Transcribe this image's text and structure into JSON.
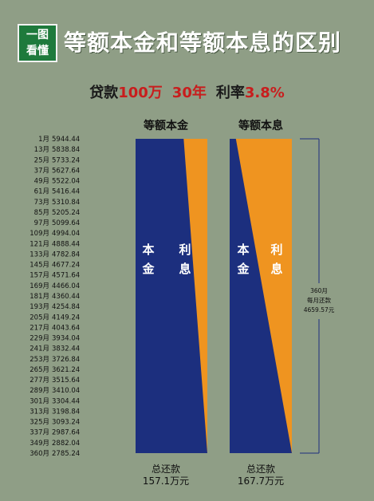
{
  "logo": {
    "line1": "一图",
    "line2": "看懂"
  },
  "header": {
    "title": "等额本金和等额本息的区别"
  },
  "subtitle": {
    "loan_label": "贷款",
    "loan_value": "100万",
    "term_value": "30年",
    "rate_label": "利率",
    "rate_value": "3.8%"
  },
  "colors": {
    "principal": "#1c2f7e",
    "interest": "#ef9420",
    "background": "#8f9e86"
  },
  "chart_data": {
    "type": "bar",
    "left_chart": {
      "title": "等额本金",
      "principal_label": "本金",
      "interest_label": "利息",
      "total_label": "总还款",
      "total_value": "157.1万元"
    },
    "right_chart": {
      "title": "等额本息",
      "principal_label": "本金",
      "interest_label": "利息",
      "total_label": "总还款",
      "total_value": "167.7万元"
    },
    "payment_schedule": [
      {
        "month": "1月",
        "payment": "5944.44"
      },
      {
        "month": "13月",
        "payment": "5838.84"
      },
      {
        "month": "25月",
        "payment": "5733.24"
      },
      {
        "month": "37月",
        "payment": "5627.64"
      },
      {
        "month": "49月",
        "payment": "5522.04"
      },
      {
        "month": "61月",
        "payment": "5416.44"
      },
      {
        "month": "73月",
        "payment": "5310.84"
      },
      {
        "month": "85月",
        "payment": "5205.24"
      },
      {
        "month": "97月",
        "payment": "5099.64"
      },
      {
        "month": "109月",
        "payment": "4994.04"
      },
      {
        "month": "121月",
        "payment": "4888.44"
      },
      {
        "month": "133月",
        "payment": "4782.84"
      },
      {
        "month": "145月",
        "payment": "4677.24"
      },
      {
        "month": "157月",
        "payment": "4571.64"
      },
      {
        "month": "169月",
        "payment": "4466.04"
      },
      {
        "month": "181月",
        "payment": "4360.44"
      },
      {
        "month": "193月",
        "payment": "4254.84"
      },
      {
        "month": "205月",
        "payment": "4149.24"
      },
      {
        "month": "217月",
        "payment": "4043.64"
      },
      {
        "month": "229月",
        "payment": "3934.04"
      },
      {
        "month": "241月",
        "payment": "3832.44"
      },
      {
        "month": "253月",
        "payment": "3726.84"
      },
      {
        "month": "265月",
        "payment": "3621.24"
      },
      {
        "month": "277月",
        "payment": "3515.64"
      },
      {
        "month": "289月",
        "payment": "3410.04"
      },
      {
        "month": "301月",
        "payment": "3304.44"
      },
      {
        "month": "313月",
        "payment": "3198.84"
      },
      {
        "month": "325月",
        "payment": "3093.24"
      },
      {
        "month": "337月",
        "payment": "2987.64"
      },
      {
        "month": "349月",
        "payment": "2882.04"
      },
      {
        "month": "360月",
        "payment": "2785.24"
      }
    ],
    "equal_installment_annotation": {
      "line1": "360月",
      "line2": "每月还款",
      "line3": "4659.57元"
    },
    "left_interest_share": {
      "start": 0.33,
      "end": 0.0
    },
    "right_interest_share": {
      "start": 0.9,
      "end": 0.0
    }
  }
}
